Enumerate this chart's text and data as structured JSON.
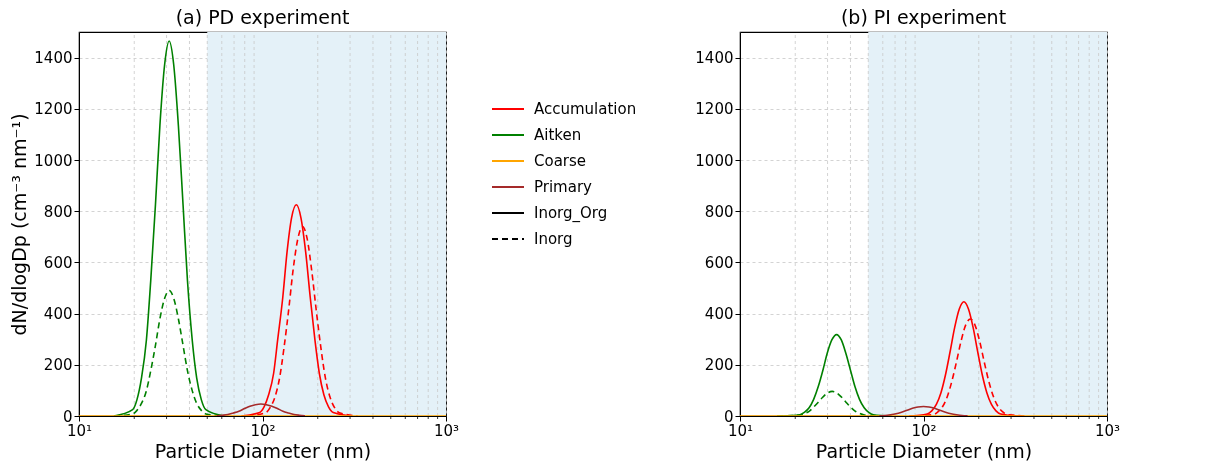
{
  "chart_data": [
    {
      "type": "line",
      "title": "(a) PD experiment",
      "xlabel": "Particle Diameter (nm)",
      "ylabel": "dN/dlogDp (cm⁻³ nm⁻¹)",
      "log": "x",
      "grid": true,
      "legend": "right",
      "xlim": [
        10,
        1000
      ],
      "ylim": [
        0,
        1500
      ],
      "xticks": [
        {
          "value": 10,
          "label": "10¹"
        },
        {
          "value": 20,
          "label": null
        },
        {
          "value": 30,
          "label": null
        },
        {
          "value": 40,
          "label": null
        },
        {
          "value": 50,
          "label": null
        },
        {
          "value": 60,
          "label": null
        },
        {
          "value": 70,
          "label": null
        },
        {
          "value": 80,
          "label": null
        },
        {
          "value": 90,
          "label": null
        },
        {
          "value": 100,
          "label": "10²"
        },
        {
          "value": 200,
          "label": null
        },
        {
          "value": 300,
          "label": null
        },
        {
          "value": 400,
          "label": null
        },
        {
          "value": 500,
          "label": null
        },
        {
          "value": 600,
          "label": null
        },
        {
          "value": 700,
          "label": null
        },
        {
          "value": 800,
          "label": null
        },
        {
          "value": 900,
          "label": null
        },
        {
          "value": 1000,
          "label": "10³"
        }
      ],
      "yticks": [
        0,
        200,
        400,
        600,
        800,
        1000,
        1200,
        1400
      ],
      "bands": [
        {
          "axis": "x",
          "from": 50,
          "to": 1000,
          "color": "#e4f1f8"
        }
      ],
      "series": [
        {
          "name": "Accumulation",
          "color": "#ff0000",
          "line_style": "solid",
          "x": [
            76.7,
            96.5,
            102,
            108,
            115,
            121,
            129,
            136,
            144,
            153,
            162,
            172,
            182,
            193,
            204,
            216,
            229,
            243,
            305
          ],
          "values": [
            0,
            14,
            36,
            83,
            167,
            298,
            464,
            639,
            774,
            825,
            774,
            639,
            464,
            298,
            167,
            83,
            36,
            14,
            0
          ]
        },
        {
          "color": "#ff0000",
          "line_style": "dashed",
          "x": [
            82.7,
            104,
            110,
            117,
            124,
            131,
            139,
            147,
            156,
            165,
            175,
            185,
            196,
            208,
            220,
            233,
            247,
            262,
            329
          ],
          "values": [
            0,
            13,
            33,
            75,
            150,
            267,
            417,
            574,
            694,
            740,
            694,
            574,
            417,
            267,
            150,
            75,
            33,
            13,
            0
          ]
        },
        {
          "name": "Aitken",
          "color": "#008000",
          "line_style": "solid",
          "x": [
            15.5,
            19.6,
            20.7,
            21.9,
            23.3,
            24.6,
            26.1,
            27.6,
            29.3,
            31,
            32.8,
            34.8,
            36.9,
            39,
            41.4,
            43.8,
            46.4,
            49.1,
            61.8
          ],
          "values": [
            0,
            25,
            64,
            148,
            297,
            529,
            825,
            1135,
            1374,
            1465,
            1374,
            1135,
            825,
            529,
            297,
            148,
            64,
            25,
            0
          ]
        },
        {
          "color": "#008000",
          "line_style": "dashed",
          "x": [
            15.5,
            19.6,
            20.7,
            21.9,
            23.3,
            24.6,
            26.1,
            27.6,
            29.3,
            31,
            32.8,
            34.8,
            36.9,
            39,
            41.4,
            43.8,
            46.4,
            49.1,
            61.8
          ],
          "values": [
            0,
            8,
            22,
            49,
            99,
            177,
            276,
            380,
            460,
            490,
            460,
            380,
            276,
            177,
            99,
            49,
            22,
            8,
            0
          ]
        },
        {
          "name": "Coarse",
          "color": "#ffa500",
          "line_style": "solid",
          "x": [
            10,
            1000
          ],
          "values": [
            0,
            0
          ]
        },
        {
          "name": "Primary",
          "color": "#a52a2a",
          "line_style": "solid",
          "x": [
            56.4,
            60.5,
            64.8,
            69.4,
            74.4,
            79.7,
            85.4,
            91.4,
            98,
            105,
            112.5,
            120.5,
            129.2,
            138.5,
            148.4,
            159,
            170.3
          ],
          "values": [
            1,
            3,
            6,
            12,
            19,
            29,
            38,
            44,
            47,
            44,
            38,
            29,
            19,
            12,
            6,
            3,
            1
          ]
        },
        {
          "name": "Inorg_Org",
          "color": "#000000",
          "line_style": "solid"
        },
        {
          "name": "Inorg",
          "color": "#000000",
          "line_style": "dashed"
        }
      ]
    },
    {
      "type": "line",
      "title": "(b) PI experiment",
      "xlabel": "Particle Diameter (nm)",
      "log": "x",
      "grid": true,
      "xlim": [
        10,
        1000
      ],
      "ylim": [
        0,
        1500
      ],
      "xticks": [
        {
          "value": 10,
          "label": "10¹"
        },
        {
          "value": 20,
          "label": null
        },
        {
          "value": 30,
          "label": null
        },
        {
          "value": 40,
          "label": null
        },
        {
          "value": 50,
          "label": null
        },
        {
          "value": 60,
          "label": null
        },
        {
          "value": 70,
          "label": null
        },
        {
          "value": 80,
          "label": null
        },
        {
          "value": 90,
          "label": null
        },
        {
          "value": 100,
          "label": "10²"
        },
        {
          "value": 200,
          "label": null
        },
        {
          "value": 300,
          "label": null
        },
        {
          "value": 400,
          "label": null
        },
        {
          "value": 500,
          "label": null
        },
        {
          "value": 600,
          "label": null
        },
        {
          "value": 700,
          "label": null
        },
        {
          "value": 800,
          "label": null
        },
        {
          "value": 900,
          "label": null
        },
        {
          "value": 1000,
          "label": "10³"
        }
      ],
      "yticks": [
        0,
        200,
        400,
        600,
        800,
        1000,
        1200,
        1400
      ],
      "bands": [
        {
          "axis": "x",
          "from": 50,
          "to": 1000,
          "color": "#e4f1f8"
        }
      ],
      "series": [
        {
          "color": "#ff0000",
          "line_style": "solid",
          "x": [
            83.2,
            104.7,
            110.9,
            117.5,
            124.5,
            131.8,
            139.6,
            147.9,
            156.7,
            166,
            175.8,
            186.3,
            197.4,
            209,
            221.4,
            234.6,
            248.3,
            263.1,
            331.2
          ],
          "values": [
            0,
            8,
            20,
            45,
            91,
            161,
            251,
            346,
            418,
            446,
            418,
            346,
            251,
            161,
            91,
            45,
            20,
            8,
            0
          ]
        },
        {
          "color": "#ff0000",
          "line_style": "dashed",
          "x": [
            90.2,
            113.6,
            120.2,
            127.4,
            135,
            142.9,
            151.4,
            160.4,
            169.9,
            180,
            190.6,
            202,
            214,
            226.6,
            240.1,
            254.3,
            269.3,
            285.3,
            359.1
          ],
          "values": [
            0,
            6,
            17,
            38,
            77,
            137,
            213,
            294,
            356,
            379,
            356,
            294,
            213,
            137,
            77,
            38,
            17,
            6,
            0
          ]
        },
        {
          "color": "#008000",
          "line_style": "solid",
          "x": [
            16.8,
            21.2,
            22.4,
            23.8,
            25.2,
            26.7,
            28.3,
            29.9,
            31.7,
            33.6,
            35.6,
            37.7,
            40,
            42.3,
            44.8,
            47.5,
            50.3,
            53.3,
            67
          ],
          "values": [
            0,
            5,
            14,
            32,
            65,
            115,
            179,
            246,
            298,
            318,
            298,
            246,
            179,
            115,
            65,
            32,
            14,
            5,
            0
          ]
        },
        {
          "color": "#008000",
          "line_style": "dashed",
          "x": [
            15.9,
            20.1,
            21.2,
            22.5,
            23.9,
            25.2,
            26.7,
            28.3,
            30,
            31.8,
            33.7,
            35.7,
            37.8,
            40,
            42.4,
            44.9,
            47.6,
            50.4,
            63.4
          ],
          "values": [
            0,
            2,
            4,
            10,
            19,
            35,
            54,
            74,
            90,
            96,
            90,
            74,
            54,
            35,
            19,
            10,
            4,
            2,
            0
          ]
        },
        {
          "color": "#ffa500",
          "line_style": "solid",
          "x": [
            10,
            1000
          ],
          "values": [
            0,
            0
          ]
        },
        {
          "color": "#a52a2a",
          "line_style": "solid",
          "x": [
            57.5,
            61.7,
            66.1,
            70.8,
            75.9,
            81.3,
            87.1,
            93.3,
            100,
            107.2,
            114.8,
            123,
            131.8,
            141.3,
            151.4,
            162.2,
            173.8
          ],
          "values": [
            1,
            2,
            5,
            9,
            15,
            22,
            30,
            35,
            37,
            35,
            30,
            22,
            15,
            9,
            5,
            2,
            1
          ]
        }
      ]
    }
  ]
}
